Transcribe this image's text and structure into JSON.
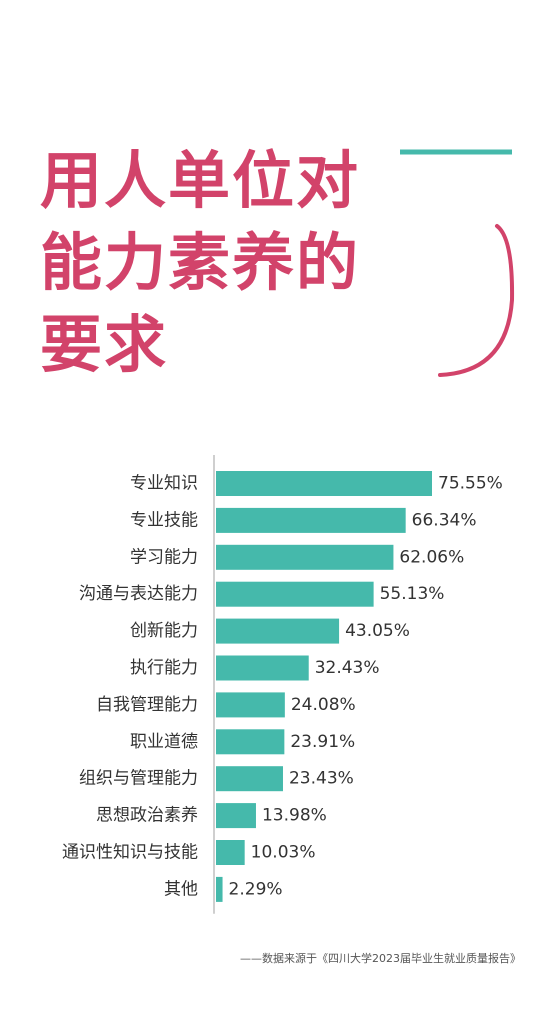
{
  "title_lines": [
    "用人单位对",
    "能力素养的",
    "要求"
  ],
  "colors": {
    "accent": "#d2436a",
    "bar": "#45b9ab",
    "teal_line": "#45b9ab",
    "axis": "#cfcfcf",
    "text": "#333333"
  },
  "chart_data": {
    "type": "bar",
    "orientation": "horizontal",
    "categories": [
      "专业知识",
      "专业技能",
      "学习能力",
      "沟通与表达能力",
      "创新能力",
      "执行能力",
      "自我管理能力",
      "职业道德",
      "组织与管理能力",
      "思想政治素养",
      "通识性知识与技能",
      "其他"
    ],
    "values": [
      75.55,
      66.34,
      62.06,
      55.13,
      43.05,
      32.43,
      24.08,
      23.91,
      23.43,
      13.98,
      10.03,
      2.29
    ],
    "labels": [
      "75.55%",
      "66.34%",
      "62.06%",
      "55.13%",
      "43.05%",
      "32.43%",
      "24.08%",
      "23.91%",
      "23.43%",
      "13.98%",
      "10.03%",
      "2.29%"
    ],
    "unit": "%",
    "xlim": [
      0,
      100
    ],
    "grid": false,
    "legend": "none"
  },
  "source": "——数据来源于《四川大学2023届毕业生就业质量报告》"
}
